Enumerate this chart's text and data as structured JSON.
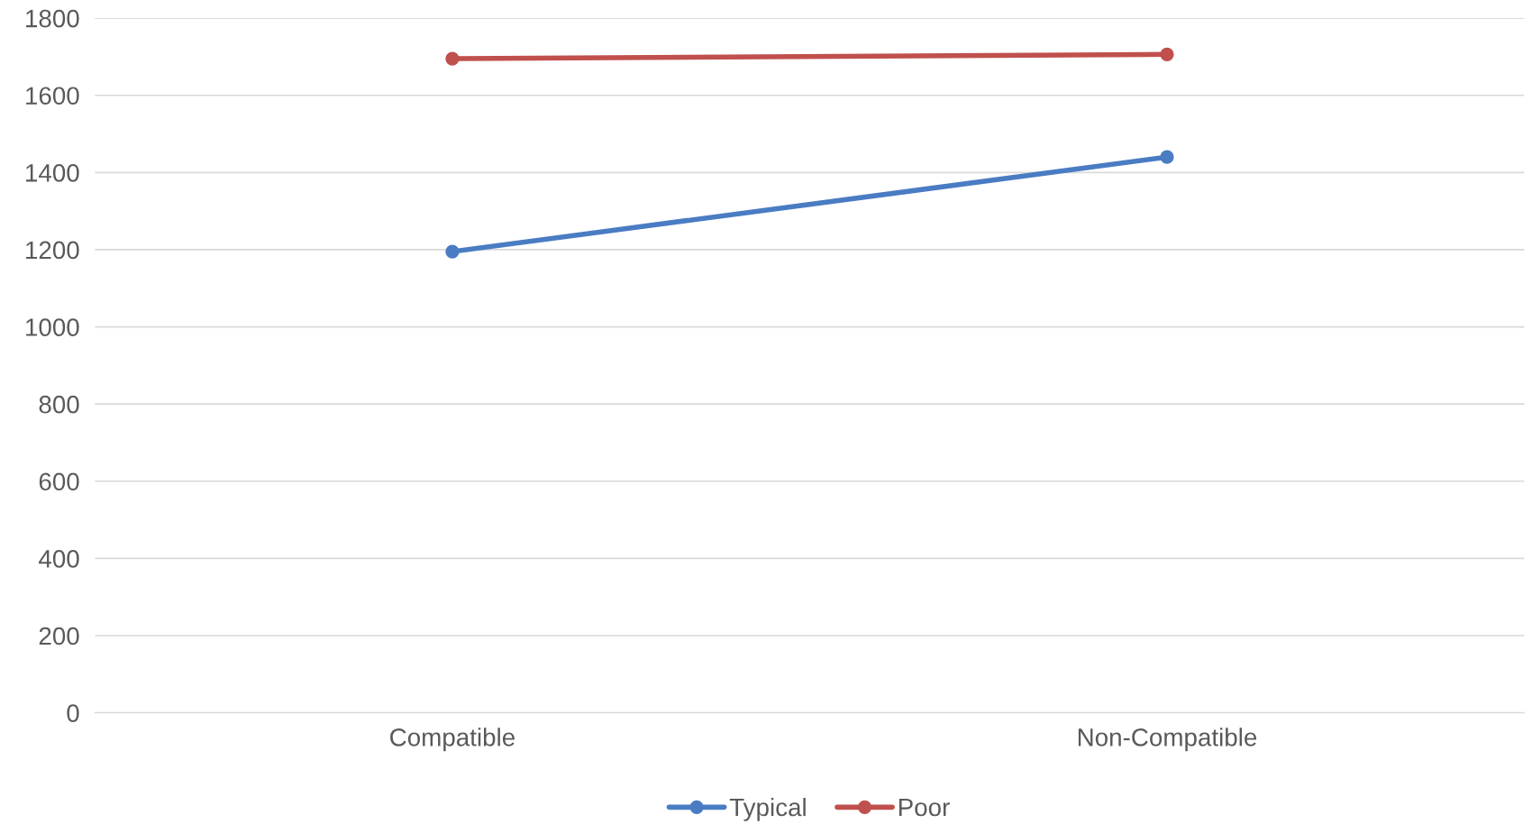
{
  "chart_data": {
    "type": "line",
    "categories": [
      "Compatible",
      "Non-Compatible"
    ],
    "series": [
      {
        "name": "Typical",
        "color": "#4a7cc3",
        "values": [
          1195,
          1440
        ]
      },
      {
        "name": "Poor",
        "color": "#c0504d",
        "values": [
          1695,
          1706
        ]
      }
    ],
    "ylim": [
      0,
      1800
    ],
    "yticks": [
      0,
      200,
      400,
      600,
      800,
      1000,
      1200,
      1400,
      1600,
      1800
    ],
    "grid": "y",
    "legend": "bottom",
    "marker": "circle",
    "line_style": "solid"
  }
}
